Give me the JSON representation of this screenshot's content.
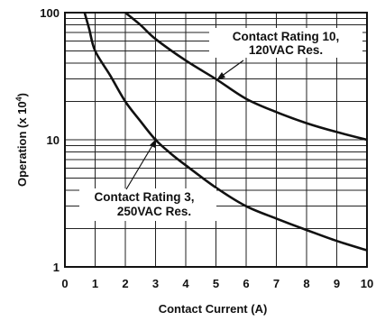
{
  "chart_data": {
    "type": "line",
    "title": "",
    "xlabel": "Contact Current (A)",
    "ylabel_main": "Operation (x 10",
    "ylabel_exp": "4",
    "ylabel_close": ")",
    "xlim": [
      0,
      10
    ],
    "ylim": [
      1,
      100
    ],
    "yscale": "log",
    "grid": true,
    "x_ticks": [
      "0",
      "1",
      "2",
      "3",
      "4",
      "5",
      "6",
      "7",
      "8",
      "9",
      "10"
    ],
    "y_ticks": [
      "1",
      "10",
      "100"
    ],
    "series": [
      {
        "key": "rating10",
        "label_line1": "Contact Rating 10,",
        "label_line2": "120VAC Res.",
        "x": [
          2.0,
          2.5,
          3.0,
          4.0,
          5.0,
          6.0,
          7.0,
          8.0,
          9.0,
          10.0
        ],
        "y": [
          100,
          80,
          62,
          42,
          30,
          21,
          16.5,
          13.5,
          11.5,
          10
        ]
      },
      {
        "key": "rating3",
        "label_line1": "Contact Rating 3,",
        "label_line2": "250VAC Res.",
        "x": [
          0.65,
          0.8,
          1.0,
          1.5,
          2.0,
          2.5,
          3.0,
          3.5,
          4.0,
          5.0,
          6.0,
          7.0,
          8.0,
          9.0,
          10.0
        ],
        "y": [
          100,
          75,
          50,
          32,
          20,
          14,
          10,
          7.8,
          6.3,
          4.2,
          3.0,
          2.4,
          1.95,
          1.6,
          1.35
        ]
      }
    ]
  }
}
